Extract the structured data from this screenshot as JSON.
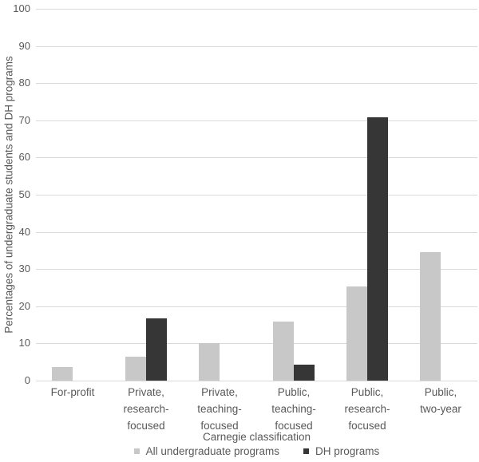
{
  "chart_data": {
    "type": "bar",
    "categories": [
      "For-profit",
      "Private,\nresearch-\nfocused",
      "Private,\nteaching-\nfocused",
      "Public,\nteaching-\nfocused",
      "Public,\nresearch-\nfocused",
      "Public,\ntwo-year"
    ],
    "series": [
      {
        "name": "All undergraduate programs",
        "color": "#c8c8c8",
        "values": [
          3.6,
          6.5,
          10.1,
          15.9,
          25.4,
          34.6
        ]
      },
      {
        "name": "DH programs",
        "color": "#363636",
        "values": [
          0,
          16.7,
          0,
          4.2,
          70.8,
          0
        ]
      }
    ],
    "title": "",
    "xlabel": "Carnegie classification",
    "ylabel": "Percentages of undergraduate students and DH programs",
    "ylim": [
      0,
      100
    ],
    "ytick_step": 10,
    "yticks": [
      0,
      10,
      20,
      30,
      40,
      50,
      60,
      70,
      80,
      90,
      100
    ],
    "grid": "horizontal",
    "gridline_color": "#d9d9d9",
    "text_color": "#595959",
    "legend_position": "bottom",
    "background_color": "#ffffff"
  }
}
